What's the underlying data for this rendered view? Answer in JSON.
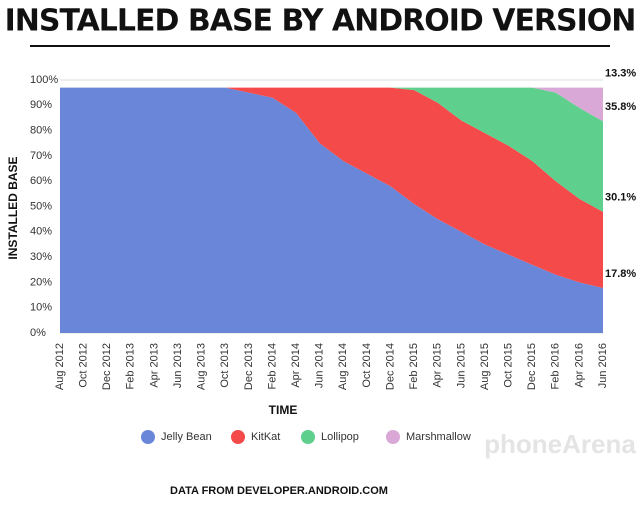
{
  "chart_data": {
    "type": "stacked-area",
    "title": "INSTALLED BASE BY ANDROID VERSION",
    "ylabel": "INSTALLED BASE",
    "xlabel": "TIME",
    "source": "DATA FROM DEVELOPER.ANDROID.COM",
    "watermark": "phoneArena",
    "categories": [
      "Aug 2012",
      "Oct 2012",
      "Dec 2012",
      "Feb 2013",
      "Apr 2013",
      "Jun 2013",
      "Aug 2013",
      "Oct 2013",
      "Dec 2013",
      "Feb 2014",
      "Apr 2014",
      "Jun 2014",
      "Aug 2014",
      "Oct 2014",
      "Dec 2014",
      "Feb 2015",
      "Apr 2015",
      "Jun 2015",
      "Aug 2015",
      "Oct 2015",
      "Dec 2015",
      "Feb 2016",
      "Apr 2016",
      "Jun 2016"
    ],
    "series": [
      {
        "name": "Jelly Bean",
        "color": "#6a86d8",
        "values": [
          97,
          97,
          97,
          97,
          97,
          97,
          97,
          97,
          95,
          93,
          87,
          75,
          68,
          63,
          58,
          51,
          45,
          40,
          35,
          31,
          27,
          23,
          20,
          17.8
        ],
        "value_labels": [
          null,
          null,
          null,
          null,
          null,
          null,
          null,
          null,
          null,
          null,
          null,
          null,
          null,
          null,
          null,
          null,
          null,
          null,
          null,
          null,
          null,
          null,
          null,
          "17.8%"
        ]
      },
      {
        "name": "KitKat",
        "color": "#f44a4a",
        "values": [
          0,
          0,
          0,
          0,
          0,
          0,
          0,
          0,
          2,
          4,
          10,
          22,
          29,
          34,
          39,
          45,
          46,
          44,
          44,
          43,
          41,
          37,
          33,
          30.1
        ],
        "value_labels": [
          null,
          null,
          null,
          null,
          null,
          null,
          null,
          null,
          null,
          null,
          null,
          null,
          null,
          null,
          null,
          null,
          null,
          null,
          null,
          null,
          null,
          null,
          null,
          "30.1%"
        ]
      },
      {
        "name": "Lollipop",
        "color": "#5fcf8e",
        "values": [
          0,
          0,
          0,
          0,
          0,
          0,
          0,
          0,
          0,
          0,
          0,
          0,
          0,
          0,
          0,
          1,
          6,
          13,
          18,
          23,
          29,
          35,
          36,
          35.8
        ],
        "value_labels": [
          null,
          null,
          null,
          null,
          null,
          null,
          null,
          null,
          null,
          null,
          null,
          null,
          null,
          null,
          null,
          null,
          null,
          null,
          null,
          null,
          null,
          null,
          null,
          "35.8%"
        ]
      },
      {
        "name": "Marshmallow",
        "color": "#d9a8d6",
        "values": [
          0,
          0,
          0,
          0,
          0,
          0,
          0,
          0,
          0,
          0,
          0,
          0,
          0,
          0,
          0,
          0,
          0,
          0,
          0,
          0,
          0,
          2,
          8,
          13.3
        ],
        "value_labels": [
          null,
          null,
          null,
          null,
          null,
          null,
          null,
          null,
          null,
          null,
          null,
          null,
          null,
          null,
          null,
          null,
          null,
          null,
          null,
          null,
          null,
          null,
          null,
          "13.3%"
        ]
      }
    ],
    "ylim": [
      0,
      100
    ],
    "yticks": [
      {
        "value": 0,
        "label": "0%"
      },
      {
        "value": 10,
        "label": "10%"
      },
      {
        "value": 20,
        "label": "20%"
      },
      {
        "value": 30,
        "label": "30%"
      },
      {
        "value": 40,
        "label": "40%"
      },
      {
        "value": 50,
        "label": "50%"
      },
      {
        "value": 60,
        "label": "60%"
      },
      {
        "value": 70,
        "label": "70%"
      },
      {
        "value": 80,
        "label": "80%"
      },
      {
        "value": 90,
        "label": "90%"
      },
      {
        "value": 100,
        "label": "100%"
      }
    ],
    "grid": true,
    "legend": "bottom"
  }
}
